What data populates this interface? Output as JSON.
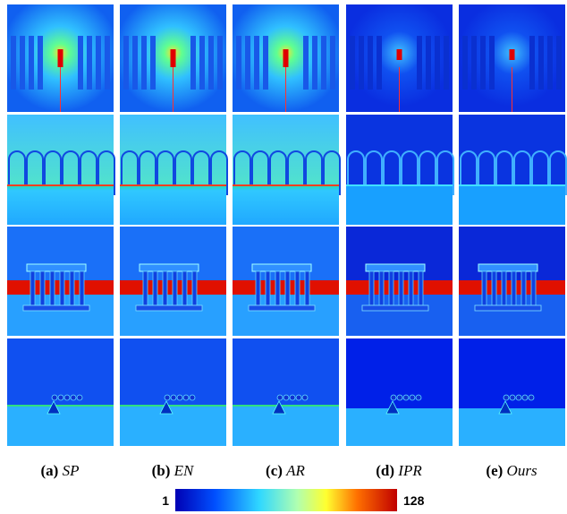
{
  "figure": {
    "captions": [
      {
        "label": "(a)",
        "method": "SP"
      },
      {
        "label": "(b)",
        "method": "EN"
      },
      {
        "label": "(c)",
        "method": "AR"
      },
      {
        "label": "(d)",
        "method": "IPR"
      },
      {
        "label": "(e)",
        "method": "Ours"
      }
    ],
    "colorbar": {
      "min": 1,
      "max": 128
    }
  }
}
